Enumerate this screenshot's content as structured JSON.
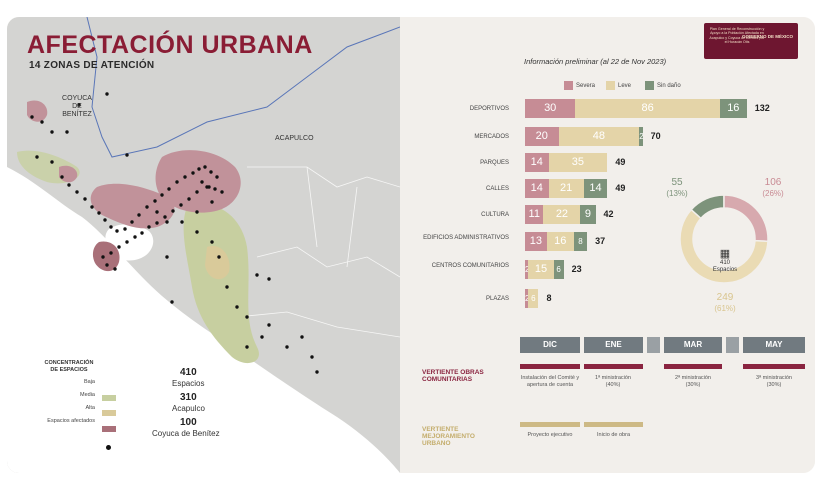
{
  "map": {
    "title": "AFECTACIÓN URBANA",
    "subtitle": "14 ZONAS DE ATENCIÓN",
    "places": {
      "coyuca": "COYUCA DE BENÍTEZ",
      "acapulco": "ACAPULCO"
    },
    "legend": {
      "title": "CONCENTRACIÓN DE ESPACIOS",
      "levels": [
        {
          "label": "Baja",
          "color": "#c7cfa0"
        },
        {
          "label": "Media",
          "color": "#d9ca9a"
        },
        {
          "label": "Alta",
          "color": "#c99a9e"
        },
        {
          "label": "Espacios afectados",
          "color": "#111111"
        }
      ]
    },
    "stats": [
      {
        "value": "410",
        "label": "Espacios"
      },
      {
        "value": "310",
        "label": "Acapulco"
      },
      {
        "value": "100",
        "label": "Coyuca de Benítez"
      }
    ],
    "colors": {
      "water": "#ffffff",
      "land": "#d4d4d2",
      "low": "#c7cfa0",
      "high": "#c1929a",
      "highDark": "#a97079"
    }
  },
  "banner": {
    "text": "Plan General de Reconstrucción y Apoyo a la Población Afectada en Acapulco y Coyuca de Benítez por el Huracán Otis",
    "logo": "GOBIERNO DE MÉXICO"
  },
  "chart_data": {
    "type": "bar",
    "title": "Información preliminar  (al 22 de Nov 2023)",
    "categories": [
      "DEPORTIVOS",
      "MERCADOS",
      "PARQUES",
      "CALLES",
      "CULTURA",
      "EDIFICIOS ADMINISTRATIVOS",
      "CENTROS COMUNITARIOS",
      "PLAZAS"
    ],
    "series": [
      {
        "name": "Severa",
        "color": "#c68c95",
        "values": [
          30,
          20,
          14,
          14,
          11,
          13,
          2,
          2
        ]
      },
      {
        "name": "Leve",
        "color": "#e4d4a8",
        "values": [
          86,
          48,
          35,
          21,
          22,
          16,
          15,
          6
        ]
      },
      {
        "name": "Sin daño",
        "color": "#7d937b",
        "values": [
          16,
          2,
          0,
          14,
          9,
          8,
          6,
          0
        ]
      }
    ],
    "totals": [
      132,
      70,
      49,
      49,
      42,
      37,
      23,
      8
    ],
    "legend": "top",
    "donut": {
      "total": "410",
      "total_label": "Espacios",
      "slices": [
        {
          "name": "Severa",
          "value": 106,
          "pct": "(26%)",
          "color": "#d7a9ae"
        },
        {
          "name": "Leve",
          "value": 249,
          "pct": "(61%)",
          "color": "#eadbb4"
        },
        {
          "name": "Sin daño",
          "value": 55,
          "pct": "(13%)",
          "color": "#7d937b"
        }
      ]
    }
  },
  "timeline": {
    "months": [
      "DIC",
      "ENE",
      "MAR",
      "MAY"
    ],
    "lanes": [
      {
        "title": "VERTIENTE OBRAS COMUNITARIAS",
        "color": "#8a2440",
        "steps": [
          "Instalación del Comité y apertura de cuenta",
          "1ª ministración (40%)",
          "2ª ministración (30%)",
          "3ª ministración (30%)"
        ]
      },
      {
        "title": "VERTIENTE MEJORAMIENTO URBANO",
        "color": "#cdb985",
        "steps": [
          "Proyecto ejecutivo",
          "Inicio de obra"
        ]
      }
    ]
  }
}
